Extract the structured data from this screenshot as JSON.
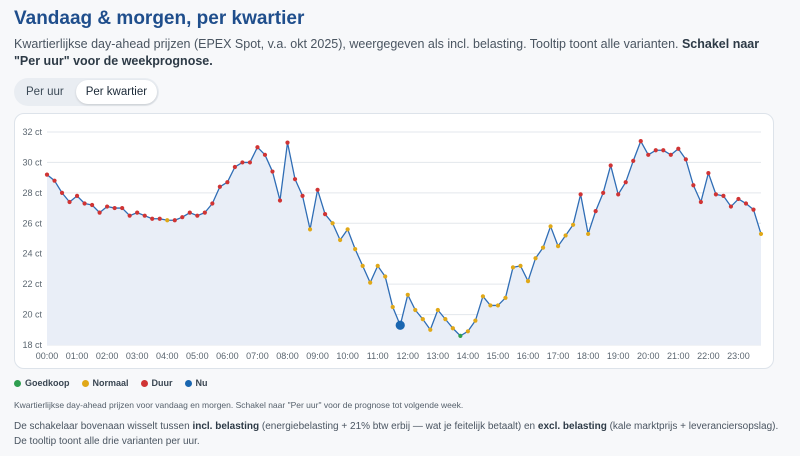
{
  "header": {
    "title": "Vandaag & morgen, per kwartier",
    "subtitle_text": "Kwartierlijkse day-ahead prijzen (EPEX Spot, v.a. okt 2025), weergegeven als incl. belasting. Tooltip toont alle varianten. ",
    "subtitle_bold": "Schakel naar \"Per uur\" voor de weekprognose."
  },
  "toggle": {
    "per_hour": "Per uur",
    "per_quarter": "Per kwartier",
    "active": "per_quarter"
  },
  "legend": [
    {
      "label": "Goedkoop",
      "color": "#2e9e4f"
    },
    {
      "label": "Normaal",
      "color": "#e0a818"
    },
    {
      "label": "Duur",
      "color": "#d03434"
    },
    {
      "label": "Nu",
      "color": "#1a66b0"
    }
  ],
  "caption": "Kwartierlijkse day-ahead prijzen voor vandaag en morgen. Schakel naar \"Per uur\" voor de prognose tot volgende week.",
  "note": {
    "part1": "De schakelaar bovenaan wisselt tussen ",
    "bold1": "incl. belasting",
    "part2": " (energiebelasting + 21% btw erbij — wat je feitelijk betaalt) en ",
    "bold2": "excl. belasting",
    "part3": " (kale marktprijs + leveranciersopslag). De tooltip toont alle drie varianten per uur."
  },
  "colors": {
    "line": "#2f6db5",
    "area": "#e9eef7",
    "grid": "#e3e7ec",
    "cheap": "#2e9e4f",
    "normal": "#e0a818",
    "expensive": "#d03434",
    "now": "#1a66b0"
  },
  "chart_data": {
    "type": "line",
    "xlabel": "",
    "ylabel": "",
    "ylim": [
      18,
      32
    ],
    "y_ticks": [
      "32 ct",
      "30 ct",
      "28 ct",
      "26 ct",
      "24 ct",
      "22 ct",
      "20 ct",
      "18 ct"
    ],
    "y_tick_values": [
      32,
      30,
      28,
      26,
      24,
      22,
      20,
      18
    ],
    "x_ticks": [
      "00:00",
      "01:00",
      "02:00",
      "03:00",
      "04:00",
      "05:00",
      "06:00",
      "07:00",
      "08:00",
      "09:00",
      "10:00",
      "11:00",
      "12:00",
      "13:00",
      "14:00",
      "15:00",
      "16:00",
      "17:00",
      "18:00",
      "19:00",
      "20:00",
      "21:00",
      "22:00",
      "23:00"
    ],
    "interval_minutes": 15,
    "grid": true,
    "now_index": 47,
    "values": [
      29.2,
      28.8,
      28.0,
      27.4,
      27.8,
      27.3,
      27.2,
      26.7,
      27.1,
      27.0,
      27.0,
      26.5,
      26.7,
      26.5,
      26.3,
      26.3,
      26.2,
      26.2,
      26.4,
      26.7,
      26.5,
      26.7,
      27.3,
      28.4,
      28.7,
      29.7,
      30.0,
      30.0,
      31.0,
      30.5,
      29.4,
      27.5,
      31.3,
      28.9,
      27.8,
      25.6,
      28.2,
      26.6,
      26.0,
      24.9,
      25.6,
      24.3,
      23.2,
      22.1,
      23.2,
      22.5,
      20.5,
      19.3,
      21.3,
      20.3,
      19.7,
      19.0,
      20.3,
      19.7,
      19.1,
      18.6,
      18.9,
      19.6,
      21.2,
      20.6,
      20.6,
      21.1,
      23.1,
      23.2,
      22.2,
      23.7,
      24.4,
      25.8,
      24.5,
      25.2,
      25.9,
      27.9,
      25.3,
      26.8,
      28.0,
      29.8,
      27.9,
      28.7,
      30.1,
      31.4,
      30.5,
      30.8,
      30.8,
      30.5,
      30.9,
      30.2,
      28.5,
      27.4,
      29.3,
      27.9,
      27.8,
      27.1,
      27.6,
      27.3,
      26.9,
      25.3
    ],
    "categories_per_point": [
      "duur",
      "duur",
      "duur",
      "duur",
      "duur",
      "duur",
      "duur",
      "duur",
      "duur",
      "duur",
      "duur",
      "duur",
      "duur",
      "duur",
      "duur",
      "duur",
      "normaal",
      "duur",
      "duur",
      "duur",
      "duur",
      "duur",
      "duur",
      "duur",
      "duur",
      "duur",
      "duur",
      "duur",
      "duur",
      "duur",
      "duur",
      "duur",
      "duur",
      "duur",
      "duur",
      "normaal",
      "duur",
      "duur",
      "normaal",
      "normaal",
      "normaal",
      "normaal",
      "normaal",
      "normaal",
      "normaal",
      "normaal",
      "normaal",
      "nu",
      "normaal",
      "normaal",
      "normaal",
      "normaal",
      "normaal",
      "normaal",
      "normaal",
      "goedkoop",
      "normaal",
      "normaal",
      "normaal",
      "normaal",
      "normaal",
      "normaal",
      "normaal",
      "normaal",
      "normaal",
      "normaal",
      "normaal",
      "normaal",
      "normaal",
      "normaal",
      "normaal",
      "duur",
      "normaal",
      "duur",
      "duur",
      "duur",
      "duur",
      "duur",
      "duur",
      "duur",
      "duur",
      "duur",
      "duur",
      "duur",
      "duur",
      "duur",
      "duur",
      "duur",
      "duur",
      "duur",
      "duur",
      "duur",
      "duur",
      "duur",
      "duur",
      "normaal"
    ]
  }
}
